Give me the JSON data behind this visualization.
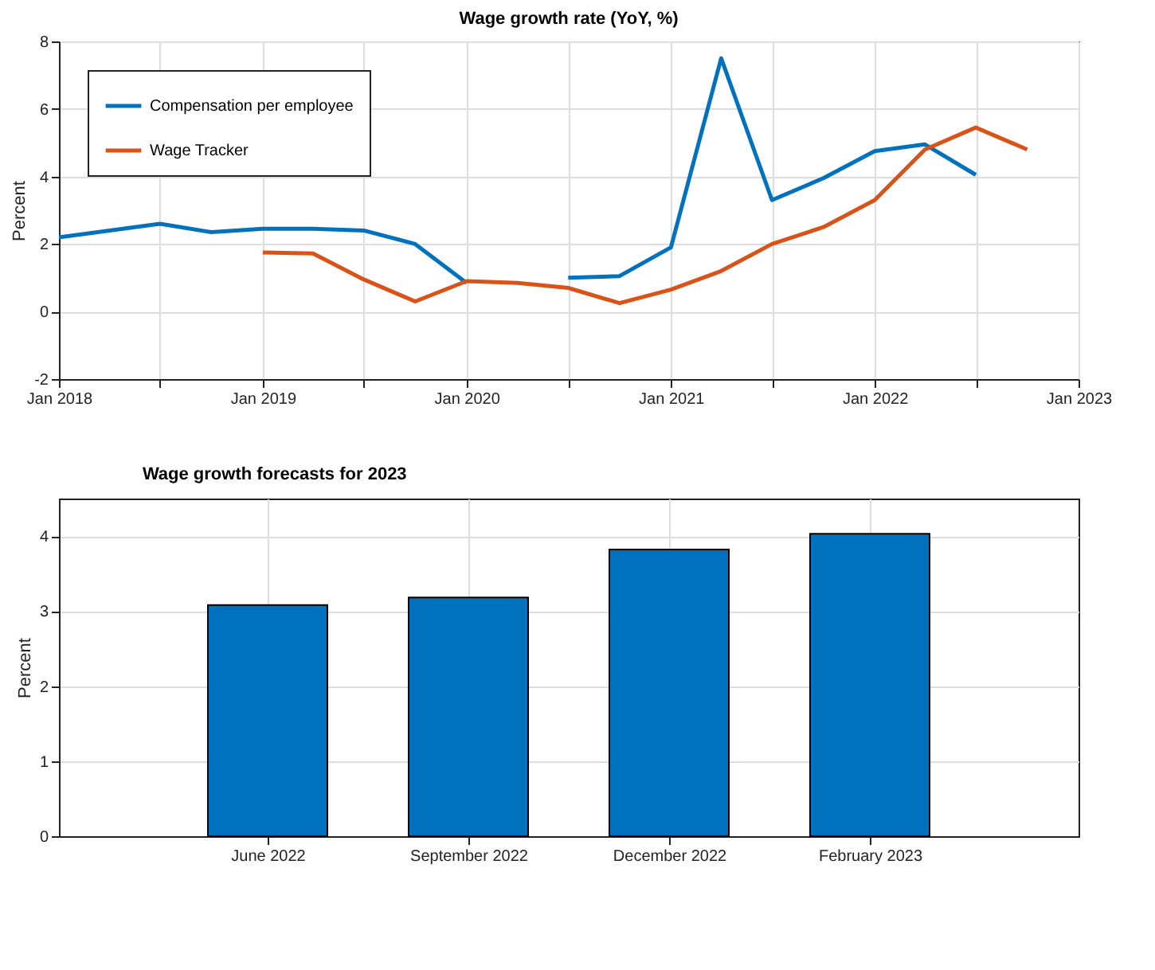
{
  "chart_data": [
    {
      "type": "line",
      "title": "Wage growth rate (YoY, %)",
      "ylabel": "Percent",
      "series": [
        {
          "name": "Compensation per employee",
          "color": "#0072bd",
          "x": [
            "2018-01",
            "2018-07",
            "2018-10",
            "2019-01",
            "2019-04",
            "2019-07",
            "2019-10",
            "2020-01",
            "2020-04",
            "2020-07",
            "2020-10",
            "2021-01",
            "2021-04",
            "2021-07",
            "2021-10",
            "2022-01",
            "2022-04",
            "2022-07"
          ],
          "values": [
            2.2,
            2.6,
            2.35,
            2.45,
            2.45,
            2.4,
            2.0,
            0.85,
            null,
            1.0,
            1.05,
            1.9,
            7.5,
            3.3,
            3.95,
            4.75,
            4.95,
            4.05
          ]
        },
        {
          "name": "Wage Tracker",
          "color": "#d95319",
          "x": [
            "2019-01",
            "2019-04",
            "2019-07",
            "2019-10",
            "2020-01",
            "2020-04",
            "2020-07",
            "2020-10",
            "2021-01",
            "2021-04",
            "2021-07",
            "2021-10",
            "2022-01",
            "2022-04",
            "2022-07",
            "2022-10"
          ],
          "values": [
            1.75,
            1.72,
            0.95,
            0.3,
            0.9,
            0.85,
            0.7,
            0.25,
            0.65,
            1.2,
            2.0,
            2.5,
            3.3,
            4.8,
            5.45,
            4.8
          ]
        }
      ],
      "xlim": [
        "2018-01",
        "2023-01"
      ],
      "xticks": [
        {
          "value": "2018-01",
          "label": "Jan 2018"
        },
        {
          "value": "2018-07",
          "label": null
        },
        {
          "value": "2019-01",
          "label": "Jan 2019"
        },
        {
          "value": "2019-07",
          "label": null
        },
        {
          "value": "2020-01",
          "label": "Jan 2020"
        },
        {
          "value": "2020-07",
          "label": null
        },
        {
          "value": "2021-01",
          "label": "Jan 2021"
        },
        {
          "value": "2021-07",
          "label": null
        },
        {
          "value": "2022-01",
          "label": "Jan 2022"
        },
        {
          "value": "2022-07",
          "label": null
        },
        {
          "value": "2023-01",
          "label": "Jan 2023"
        }
      ],
      "ylim": [
        -2,
        8
      ],
      "yticks": [
        -2,
        0,
        2,
        4,
        6,
        8
      ],
      "grid": true,
      "legend": "top left",
      "line_style": "solid",
      "marker": "none"
    },
    {
      "type": "bar",
      "title": "Wage growth forecasts for 2023",
      "ylabel": "Percent",
      "categories": [
        "June 2022",
        "September 2022",
        "December 2022",
        "February 2023"
      ],
      "values": [
        3.08,
        3.18,
        3.82,
        4.03
      ],
      "color": "#0072bd",
      "ylim": [
        0,
        4.5
      ],
      "yticks": [
        0,
        1,
        2,
        3,
        4
      ],
      "grid": true
    }
  ]
}
